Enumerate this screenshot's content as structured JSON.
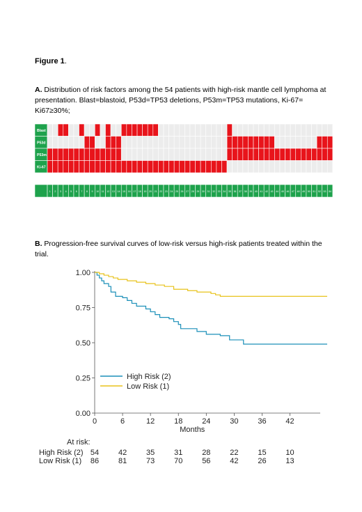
{
  "figure": {
    "title_bold": "Figure 1",
    "title_end": "."
  },
  "panelA": {
    "caption_label": "A.",
    "caption_text": " Distribution of risk factors among the 54 patients with high-risk mantle cell lymphoma at presentation. Blast=blastoid, P53d=TP53 deletions, P53m=TP53 mutations, Ki-67= Ki67≥30%;",
    "colors": {
      "present": "#e8141b",
      "absent": "#ececec",
      "label_bg": "#1ea24c",
      "cell_border": "#ffffff"
    },
    "rows": [
      {
        "label": "Blast",
        "positive": [
          3,
          4,
          7,
          10,
          12,
          15,
          16,
          17,
          18,
          19,
          20,
          21,
          35
        ]
      },
      {
        "label": "P53d",
        "positive": [
          8,
          9,
          12,
          13,
          14,
          35,
          36,
          37,
          38,
          39,
          40,
          41,
          42,
          43,
          52,
          53,
          54
        ]
      },
      {
        "label": "P53m",
        "positive": [
          1,
          2,
          3,
          4,
          5,
          6,
          7,
          8,
          9,
          10,
          11,
          12,
          13,
          14,
          35,
          36,
          37,
          38,
          39,
          40,
          41,
          42,
          43,
          44,
          45,
          46,
          47,
          48,
          49,
          50,
          51,
          52,
          53,
          54
        ]
      },
      {
        "label": "Ki-67",
        "positive": [
          1,
          2,
          3,
          4,
          5,
          6,
          7,
          8,
          9,
          10,
          11,
          12,
          13,
          14,
          15,
          16,
          17,
          18,
          19,
          20,
          21,
          22,
          23,
          24,
          25,
          26,
          27,
          28,
          29,
          30,
          31,
          32,
          33,
          34
        ]
      }
    ],
    "patients": [
      "1",
      "2",
      "3",
      "4",
      "5",
      "6",
      "7",
      "8",
      "9",
      "10",
      "11",
      "12",
      "13",
      "14",
      "15",
      "16",
      "17",
      "18",
      "19",
      "20",
      "21",
      "22",
      "23",
      "24",
      "25",
      "26",
      "27",
      "28",
      "29",
      "30",
      "31",
      "32",
      "33",
      "34",
      "35",
      "36",
      "37",
      "38",
      "39",
      "40",
      "41",
      "42",
      "43",
      "44",
      "45",
      "46",
      "47",
      "48",
      "49",
      "50",
      "51",
      "52",
      "53",
      "54"
    ]
  },
  "panelB": {
    "caption_label": "B.",
    "caption_text": " Progression-free survival curves of low-risk versus high-risk patients treated within the trial."
  },
  "chart_data": {
    "type": "line",
    "xlabel": "Months",
    "ylabel": "",
    "xlim": [
      0,
      50
    ],
    "ylim": [
      0,
      1
    ],
    "x_ticks": [
      "0",
      "6",
      "12",
      "18",
      "24",
      "30",
      "36",
      "42"
    ],
    "x_tick_values": [
      0,
      6,
      12,
      18,
      24,
      30,
      36,
      42
    ],
    "y_ticks": [
      "0.00",
      "0.25",
      "0.50",
      "0.75",
      "1.00"
    ],
    "y_tick_values": [
      0,
      0.25,
      0.5,
      0.75,
      1.0
    ],
    "legend_placement": "bottom-left",
    "series": [
      {
        "name": "High Risk (2)",
        "color": "#1a8fb8",
        "step": [
          [
            0,
            1.0
          ],
          [
            0.5,
            0.98
          ],
          [
            1,
            0.96
          ],
          [
            1.5,
            0.94
          ],
          [
            2,
            0.92
          ],
          [
            3,
            0.9
          ],
          [
            3.5,
            0.86
          ],
          [
            4.5,
            0.83
          ],
          [
            6,
            0.82
          ],
          [
            7,
            0.8
          ],
          [
            8,
            0.78
          ],
          [
            9,
            0.76
          ],
          [
            11,
            0.74
          ],
          [
            12,
            0.72
          ],
          [
            13,
            0.7
          ],
          [
            14,
            0.68
          ],
          [
            16,
            0.67
          ],
          [
            17,
            0.65
          ],
          [
            18,
            0.63
          ],
          [
            18.5,
            0.6
          ],
          [
            22,
            0.58
          ],
          [
            24,
            0.56
          ],
          [
            27,
            0.55
          ],
          [
            29,
            0.52
          ],
          [
            32,
            0.49
          ],
          [
            50,
            0.49
          ]
        ]
      },
      {
        "name": "Low Risk (1)",
        "color": "#e8c21a",
        "step": [
          [
            0,
            1.0
          ],
          [
            1,
            0.99
          ],
          [
            2,
            0.98
          ],
          [
            3,
            0.97
          ],
          [
            4,
            0.96
          ],
          [
            5,
            0.95
          ],
          [
            7,
            0.94
          ],
          [
            9,
            0.93
          ],
          [
            11,
            0.92
          ],
          [
            13,
            0.91
          ],
          [
            15,
            0.9
          ],
          [
            17,
            0.88
          ],
          [
            20,
            0.87
          ],
          [
            22,
            0.86
          ],
          [
            25,
            0.85
          ],
          [
            26,
            0.84
          ],
          [
            27,
            0.83
          ],
          [
            50,
            0.83
          ]
        ]
      }
    ],
    "at_risk": {
      "title": "At risk:",
      "x_values": [
        0,
        6,
        12,
        18,
        24,
        30,
        36,
        42
      ],
      "rows": [
        {
          "label": "High Risk (2)",
          "values": [
            "54",
            "42",
            "35",
            "31",
            "28",
            "22",
            "15",
            "10"
          ]
        },
        {
          "label": "Low Risk (1)",
          "values": [
            "86",
            "81",
            "73",
            "70",
            "56",
            "42",
            "26",
            "13"
          ]
        }
      ]
    }
  }
}
